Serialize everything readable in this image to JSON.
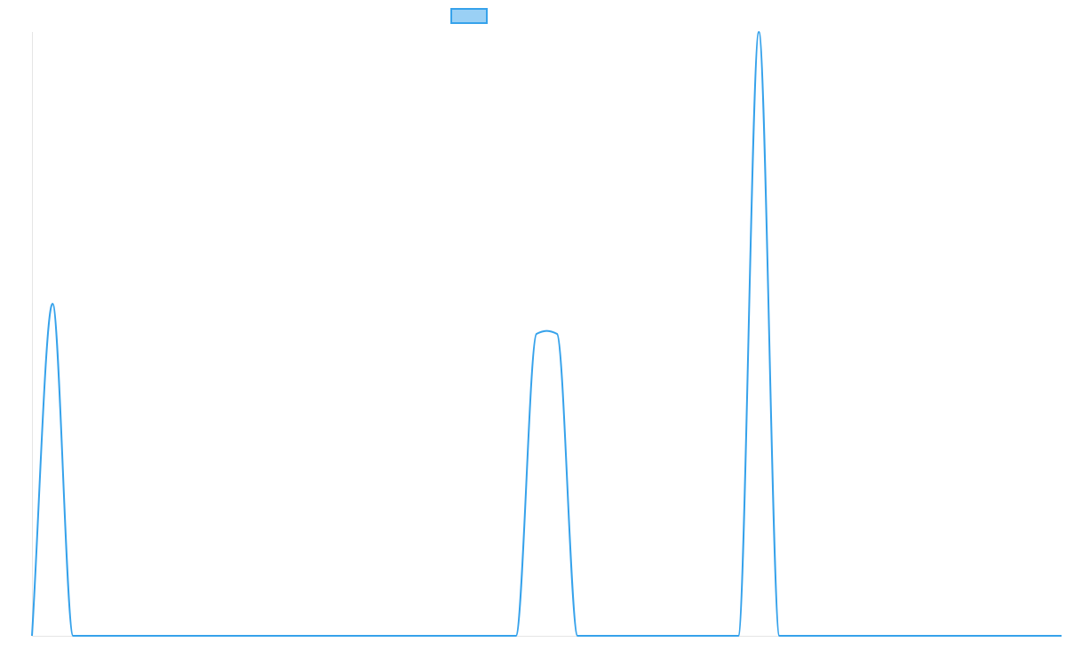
{
  "colors": {
    "line": "#36a2eb",
    "legend_fill": "#9ad0f5",
    "axis": "#e5e5e5",
    "background": "#ffffff"
  },
  "chart_data": {
    "type": "line",
    "title": "",
    "xlabel": "",
    "ylabel": "",
    "x_ticks_visible": false,
    "y_ticks_visible": false,
    "grid": false,
    "legend": {
      "placement": "top-center",
      "entries": [
        {
          "name": ""
        }
      ]
    },
    "xlim": [
      0,
      50
    ],
    "ylim": [
      0,
      100
    ],
    "series": [
      {
        "name": "",
        "smooth": true,
        "points": [
          [
            0,
            0
          ],
          [
            1,
            55
          ],
          [
            2,
            0
          ],
          [
            3,
            0
          ],
          [
            5,
            0
          ],
          [
            7,
            0
          ],
          [
            9,
            0
          ],
          [
            11,
            0
          ],
          [
            13,
            0
          ],
          [
            15,
            0
          ],
          [
            17,
            0
          ],
          [
            19,
            0
          ],
          [
            21,
            0
          ],
          [
            23,
            0
          ],
          [
            23.5,
            0
          ],
          [
            24.5,
            50
          ],
          [
            25,
            50.5
          ],
          [
            25.5,
            50
          ],
          [
            26.5,
            0
          ],
          [
            28,
            0
          ],
          [
            30,
            0
          ],
          [
            32,
            0
          ],
          [
            34,
            0
          ],
          [
            34.3,
            0
          ],
          [
            35.3,
            100
          ],
          [
            36.3,
            0
          ],
          [
            37,
            0
          ],
          [
            39,
            0
          ],
          [
            41,
            0
          ],
          [
            43,
            0
          ],
          [
            45,
            0
          ],
          [
            47,
            0
          ],
          [
            49,
            0
          ],
          [
            50,
            0
          ]
        ]
      }
    ]
  }
}
